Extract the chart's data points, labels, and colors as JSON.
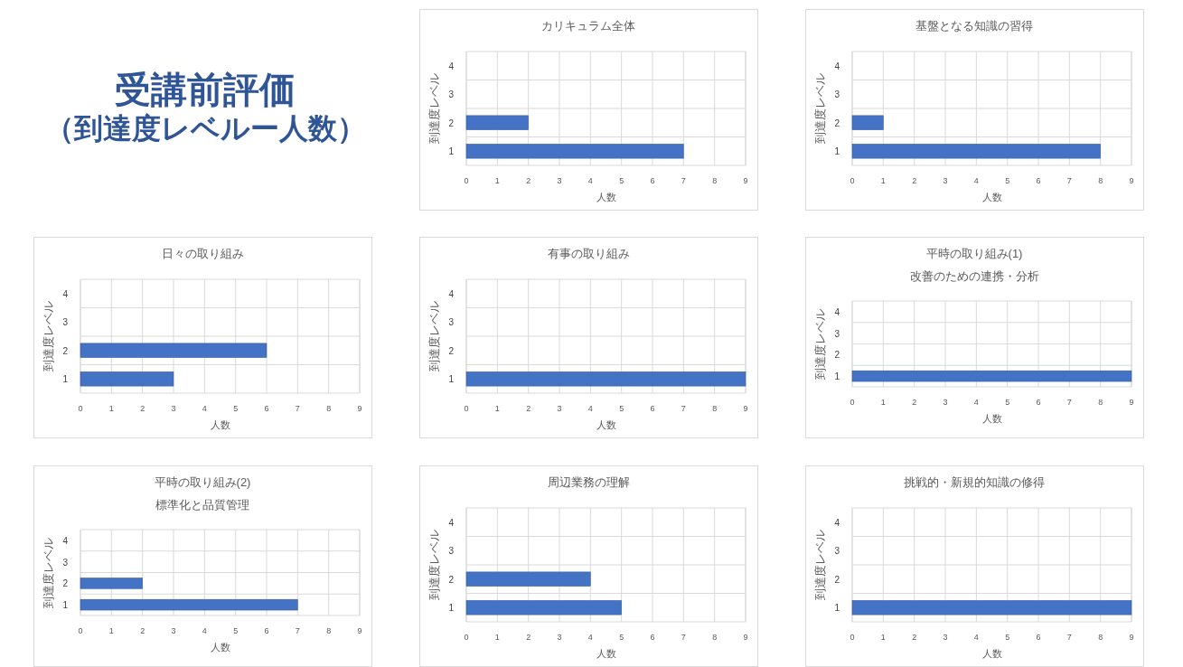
{
  "chart_data": [
    {
      "type": "other",
      "title": "受講前評価",
      "subtitle": "（到達度レベルー人数）",
      "color": "#2f5597"
    },
    {
      "type": "bar",
      "orientation": "horizontal",
      "title": "カリキュラム全体",
      "xlabel": "人数",
      "ylabel": "到達度レベル",
      "categories": [
        "4",
        "3",
        "2",
        "1"
      ],
      "values": [
        null,
        null,
        2,
        7
      ],
      "color": "#4472c4",
      "xlim": [
        0,
        9
      ],
      "xticks": [
        0,
        1,
        2,
        3,
        4,
        5,
        6,
        7,
        8,
        9
      ],
      "grid": true
    },
    {
      "type": "bar",
      "orientation": "horizontal",
      "title": "基盤となる知識の習得",
      "xlabel": "人数",
      "ylabel": "到達度レベル",
      "categories": [
        "4",
        "3",
        "2",
        "1"
      ],
      "values": [
        null,
        null,
        1,
        8
      ],
      "color": "#4472c4",
      "xlim": [
        0,
        9
      ],
      "xticks": [
        0,
        1,
        2,
        3,
        4,
        5,
        6,
        7,
        8,
        9
      ],
      "grid": true
    },
    {
      "type": "bar",
      "orientation": "horizontal",
      "title": "日々の取り組み",
      "xlabel": "人数",
      "ylabel": "到達度レベル",
      "categories": [
        "4",
        "3",
        "2",
        "1"
      ],
      "values": [
        null,
        null,
        6,
        3
      ],
      "color": "#4472c4",
      "xlim": [
        0,
        9
      ],
      "xticks": [
        0,
        1,
        2,
        3,
        4,
        5,
        6,
        7,
        8,
        9
      ],
      "grid": true
    },
    {
      "type": "bar",
      "orientation": "horizontal",
      "title": "有事の取り組み",
      "xlabel": "人数",
      "ylabel": "到達度レベル",
      "categories": [
        "4",
        "3",
        "2",
        "1"
      ],
      "values": [
        null,
        null,
        null,
        9
      ],
      "color": "#4472c4",
      "xlim": [
        0,
        9
      ],
      "xticks": [
        0,
        1,
        2,
        3,
        4,
        5,
        6,
        7,
        8,
        9
      ],
      "grid": true
    },
    {
      "type": "bar",
      "orientation": "horizontal",
      "title": "平時の取り組み(1)",
      "subtitle": "改善のための連携・分析",
      "xlabel": "人数",
      "ylabel": "到達度レベル",
      "categories": [
        "4",
        "3",
        "2",
        "1"
      ],
      "values": [
        null,
        null,
        null,
        9
      ],
      "color": "#4472c4",
      "xlim": [
        0,
        9
      ],
      "xticks": [
        0,
        1,
        2,
        3,
        4,
        5,
        6,
        7,
        8,
        9
      ],
      "grid": true
    },
    {
      "type": "bar",
      "orientation": "horizontal",
      "title": "平時の取り組み(2)",
      "subtitle": "標準化と品質管理",
      "xlabel": "人数",
      "ylabel": "到達度レベル",
      "categories": [
        "4",
        "3",
        "2",
        "1"
      ],
      "values": [
        null,
        null,
        2,
        7
      ],
      "color": "#4472c4",
      "xlim": [
        0,
        9
      ],
      "xticks": [
        0,
        1,
        2,
        3,
        4,
        5,
        6,
        7,
        8,
        9
      ],
      "grid": true
    },
    {
      "type": "bar",
      "orientation": "horizontal",
      "title": "周辺業務の理解",
      "xlabel": "人数",
      "ylabel": "到達度レベル",
      "categories": [
        "4",
        "3",
        "2",
        "1"
      ],
      "values": [
        null,
        null,
        4,
        5
      ],
      "color": "#4472c4",
      "xlim": [
        0,
        9
      ],
      "xticks": [
        0,
        1,
        2,
        3,
        4,
        5,
        6,
        7,
        8,
        9
      ],
      "grid": true
    },
    {
      "type": "bar",
      "orientation": "horizontal",
      "title": "挑戦的・新規的知識の修得",
      "xlabel": "人数",
      "ylabel": "到達度レベル",
      "categories": [
        "4",
        "3",
        "2",
        "1"
      ],
      "values": [
        null,
        null,
        null,
        9
      ],
      "color": "#4472c4",
      "xlim": [
        0,
        9
      ],
      "xticks": [
        0,
        1,
        2,
        3,
        4,
        5,
        6,
        7,
        8,
        9
      ],
      "grid": true
    }
  ]
}
